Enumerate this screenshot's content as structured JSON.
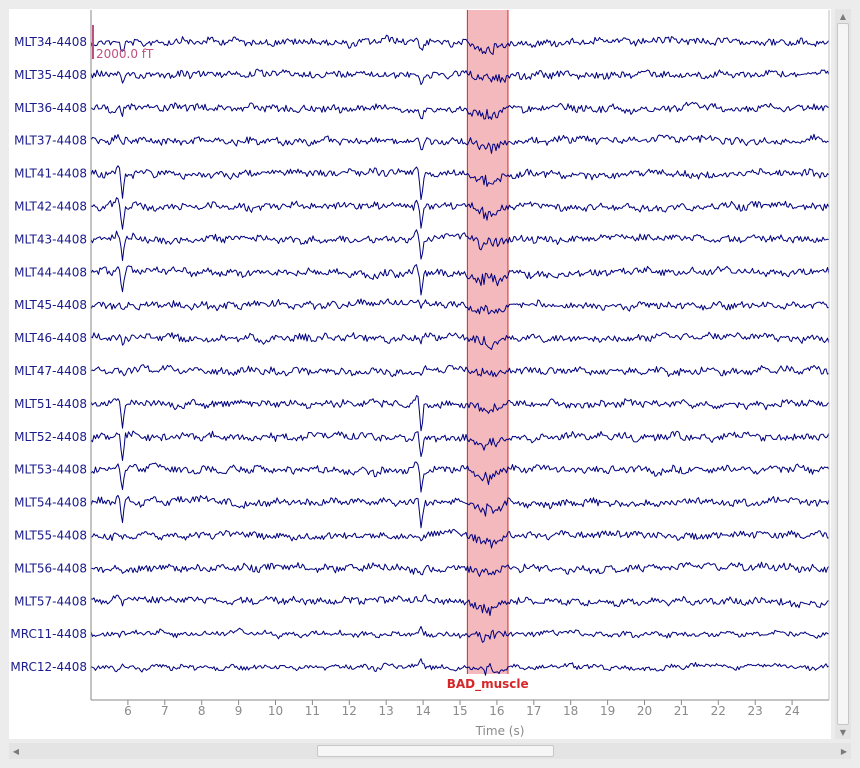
{
  "chart_data": {
    "type": "line",
    "channels": [
      "MLT34-4408",
      "MLT35-4408",
      "MLT36-4408",
      "MLT37-4408",
      "MLT41-4408",
      "MLT42-4408",
      "MLT43-4408",
      "MLT44-4408",
      "MLT45-4408",
      "MLT46-4408",
      "MLT47-4408",
      "MLT51-4408",
      "MLT52-4408",
      "MLT53-4408",
      "MLT54-4408",
      "MLT55-4408",
      "MLT56-4408",
      "MLT57-4408",
      "MRC11-4408",
      "MRC12-4408"
    ],
    "x_ticks": [
      "6",
      "7",
      "8",
      "9",
      "10",
      "11",
      "12",
      "13",
      "14",
      "15",
      "16",
      "17",
      "18",
      "19",
      "20",
      "21",
      "22",
      "23",
      "24"
    ],
    "xlim": [
      5,
      25
    ],
    "xlabel": "Time (s)",
    "scalebar_label": "2000.0 fT",
    "annotation": {
      "label": "BAD_muscle",
      "start": 15.2,
      "end": 16.3,
      "color": "#d62728"
    },
    "trace_color": "#00007f",
    "cardiac_artifacts_at": [
      5.85,
      13.95
    ]
  },
  "icons": {
    "scroll_up": "arrow-up-icon",
    "scroll_down": "arrow-down-icon",
    "scroll_left": "arrow-left-icon",
    "scroll_right": "arrow-right-icon"
  },
  "glyphs": {
    "up": "▲",
    "down": "▼",
    "left": "◀",
    "right": "▶"
  }
}
